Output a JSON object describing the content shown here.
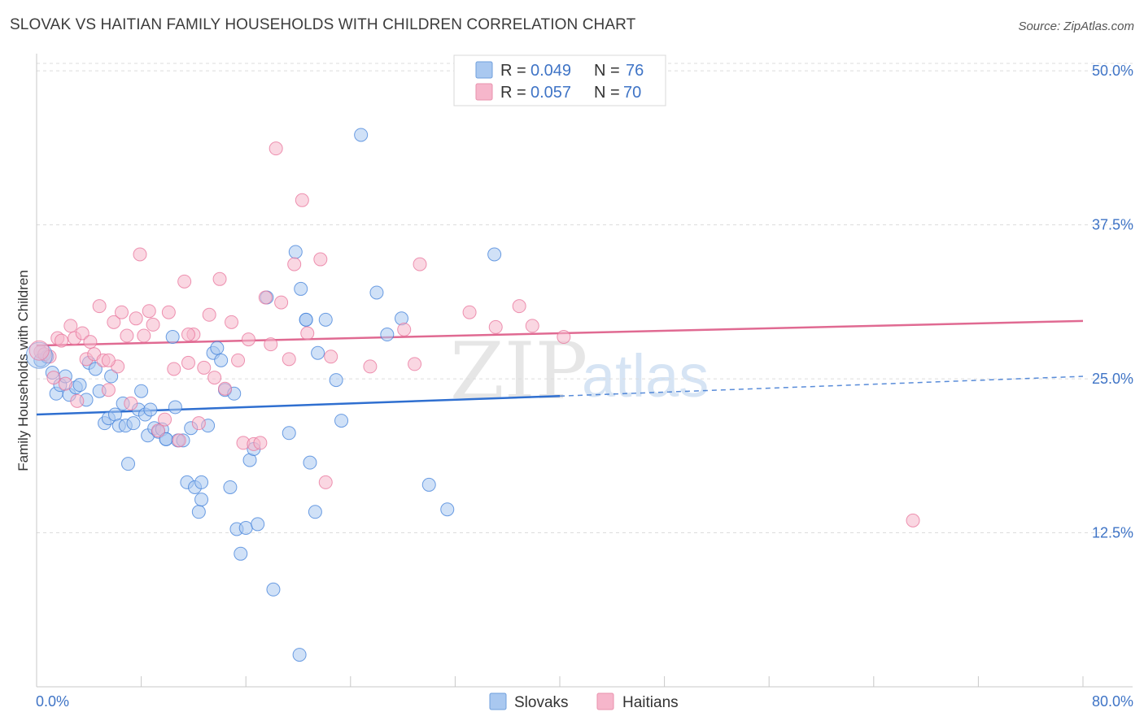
{
  "title": "SLOVAK VS HAITIAN FAMILY HOUSEHOLDS WITH CHILDREN CORRELATION CHART",
  "source": "Source: ZipAtlas.com",
  "watermark": {
    "part1": "ZIP",
    "part2": "atlas"
  },
  "legend": {
    "rows": [
      {
        "r_label": "R =",
        "r_value": "0.049",
        "n_label": "N =",
        "n_value": "76",
        "color": "#a9c8f0"
      },
      {
        "r_label": "R =",
        "r_value": "0.057",
        "n_label": "N =",
        "n_value": "70",
        "color": "#f6b6cb"
      }
    ]
  },
  "bottom_legend": {
    "series1": "Slovaks",
    "series2": "Haitians"
  },
  "chart_data": {
    "type": "scatter",
    "title": "SLOVAK VS HAITIAN FAMILY HOUSEHOLDS WITH CHILDREN CORRELATION CHART",
    "xlabel": "",
    "ylabel": "Family Households with Children",
    "xlim": [
      0,
      80
    ],
    "ylim": [
      0,
      51
    ],
    "x_tick_labels": [
      "0.0%",
      "80.0%"
    ],
    "y_ticks": [
      12.5,
      25.0,
      37.5,
      50.0
    ],
    "y_tick_labels": [
      "12.5%",
      "25.0%",
      "37.5%",
      "50.0%"
    ],
    "grid": true,
    "series": [
      {
        "name": "Slovaks",
        "color": "#3f7fd9",
        "fill": "#a9c8f0",
        "r": 0.049,
        "n": 76,
        "trend": {
          "x0": 0,
          "y0": 22.1,
          "x1": 40,
          "y1": 23.6,
          "dash_x1": 80,
          "dash_y1": 25.2
        },
        "points": [
          [
            0.3,
            26.5
          ],
          [
            0.8,
            26.8
          ],
          [
            1.2,
            25.5
          ],
          [
            1.5,
            23.8
          ],
          [
            1.8,
            24.5
          ],
          [
            2.2,
            25.2
          ],
          [
            2.5,
            23.7
          ],
          [
            3.0,
            24.3
          ],
          [
            3.3,
            24.5
          ],
          [
            3.8,
            23.3
          ],
          [
            4.0,
            26.3
          ],
          [
            4.5,
            25.8
          ],
          [
            4.8,
            24.0
          ],
          [
            5.2,
            21.4
          ],
          [
            5.5,
            21.8
          ],
          [
            5.7,
            25.2
          ],
          [
            6.0,
            22.1
          ],
          [
            6.3,
            21.2
          ],
          [
            6.6,
            23.0
          ],
          [
            6.8,
            21.2
          ],
          [
            7.0,
            18.1
          ],
          [
            7.4,
            21.4
          ],
          [
            7.8,
            22.5
          ],
          [
            8.0,
            24.0
          ],
          [
            8.3,
            22.1
          ],
          [
            8.5,
            20.4
          ],
          [
            8.7,
            22.5
          ],
          [
            9.0,
            21.0
          ],
          [
            9.3,
            20.7
          ],
          [
            9.6,
            20.9
          ],
          [
            9.9,
            20.1
          ],
          [
            10.4,
            28.4
          ],
          [
            10.6,
            22.7
          ],
          [
            10.8,
            20.0
          ],
          [
            11.2,
            20.0
          ],
          [
            11.5,
            16.6
          ],
          [
            11.8,
            21.0
          ],
          [
            12.1,
            16.2
          ],
          [
            12.4,
            14.2
          ],
          [
            12.6,
            15.2
          ],
          [
            13.1,
            21.2
          ],
          [
            13.5,
            27.1
          ],
          [
            13.8,
            27.5
          ],
          [
            14.1,
            26.5
          ],
          [
            14.4,
            24.1
          ],
          [
            14.8,
            16.2
          ],
          [
            15.1,
            23.8
          ],
          [
            15.3,
            12.8
          ],
          [
            15.6,
            10.8
          ],
          [
            16.0,
            12.9
          ],
          [
            16.3,
            18.4
          ],
          [
            16.6,
            19.3
          ],
          [
            16.9,
            13.2
          ],
          [
            17.6,
            31.6
          ],
          [
            18.1,
            7.9
          ],
          [
            19.3,
            20.6
          ],
          [
            19.8,
            35.3
          ],
          [
            20.2,
            32.3
          ],
          [
            20.6,
            29.8
          ],
          [
            20.9,
            18.2
          ],
          [
            21.3,
            14.2
          ],
          [
            21.5,
            27.1
          ],
          [
            22.9,
            24.9
          ],
          [
            23.3,
            21.6
          ],
          [
            24.8,
            44.8
          ],
          [
            26.0,
            32.0
          ],
          [
            26.8,
            28.6
          ],
          [
            27.9,
            29.9
          ],
          [
            30.0,
            16.4
          ],
          [
            31.4,
            14.4
          ],
          [
            35.0,
            35.1
          ],
          [
            20.6,
            29.8
          ],
          [
            22.1,
            29.8
          ],
          [
            20.1,
            2.6
          ],
          [
            12.6,
            16.6
          ],
          [
            9.9,
            20.1
          ]
        ]
      },
      {
        "name": "Haitians",
        "color": "#e8729a",
        "fill": "#f6b6cb",
        "r": 0.057,
        "n": 70,
        "trend": {
          "x0": 0,
          "y0": 27.7,
          "x1": 80,
          "y1": 29.7
        },
        "points": [
          [
            0.3,
            27.2
          ],
          [
            0.6,
            27.0
          ],
          [
            1.0,
            26.8
          ],
          [
            1.3,
            25.1
          ],
          [
            1.6,
            28.3
          ],
          [
            1.9,
            28.1
          ],
          [
            2.2,
            24.6
          ],
          [
            2.6,
            29.3
          ],
          [
            2.9,
            28.3
          ],
          [
            3.1,
            23.2
          ],
          [
            3.5,
            28.7
          ],
          [
            3.8,
            26.6
          ],
          [
            4.1,
            28.0
          ],
          [
            4.4,
            27.0
          ],
          [
            4.8,
            30.9
          ],
          [
            5.1,
            26.5
          ],
          [
            5.5,
            24.1
          ],
          [
            5.9,
            29.6
          ],
          [
            6.2,
            26.0
          ],
          [
            6.5,
            30.4
          ],
          [
            6.9,
            28.5
          ],
          [
            7.2,
            23.0
          ],
          [
            7.6,
            29.9
          ],
          [
            7.9,
            35.1
          ],
          [
            8.2,
            28.5
          ],
          [
            8.6,
            30.5
          ],
          [
            8.9,
            29.4
          ],
          [
            9.3,
            20.8
          ],
          [
            9.8,
            21.7
          ],
          [
            10.1,
            30.4
          ],
          [
            10.5,
            25.8
          ],
          [
            10.9,
            20.0
          ],
          [
            11.3,
            32.9
          ],
          [
            11.6,
            26.3
          ],
          [
            12.0,
            28.6
          ],
          [
            12.4,
            21.4
          ],
          [
            12.8,
            25.9
          ],
          [
            13.2,
            30.2
          ],
          [
            13.6,
            25.1
          ],
          [
            14.0,
            33.1
          ],
          [
            14.4,
            24.2
          ],
          [
            14.9,
            29.6
          ],
          [
            15.4,
            26.5
          ],
          [
            15.8,
            19.8
          ],
          [
            16.2,
            28.2
          ],
          [
            16.6,
            19.7
          ],
          [
            17.1,
            19.8
          ],
          [
            17.5,
            31.6
          ],
          [
            17.9,
            27.8
          ],
          [
            18.3,
            43.7
          ],
          [
            18.7,
            31.2
          ],
          [
            19.3,
            26.6
          ],
          [
            19.7,
            34.3
          ],
          [
            20.3,
            39.5
          ],
          [
            20.7,
            28.7
          ],
          [
            21.7,
            34.7
          ],
          [
            22.1,
            16.6
          ],
          [
            22.5,
            26.8
          ],
          [
            25.5,
            26.0
          ],
          [
            28.1,
            29.0
          ],
          [
            28.9,
            26.2
          ],
          [
            29.3,
            34.3
          ],
          [
            33.1,
            30.4
          ],
          [
            35.1,
            29.2
          ],
          [
            36.9,
            30.9
          ],
          [
            37.9,
            29.3
          ],
          [
            40.3,
            28.4
          ],
          [
            67.0,
            13.5
          ],
          [
            11.6,
            28.6
          ],
          [
            5.5,
            26.5
          ]
        ]
      }
    ]
  }
}
